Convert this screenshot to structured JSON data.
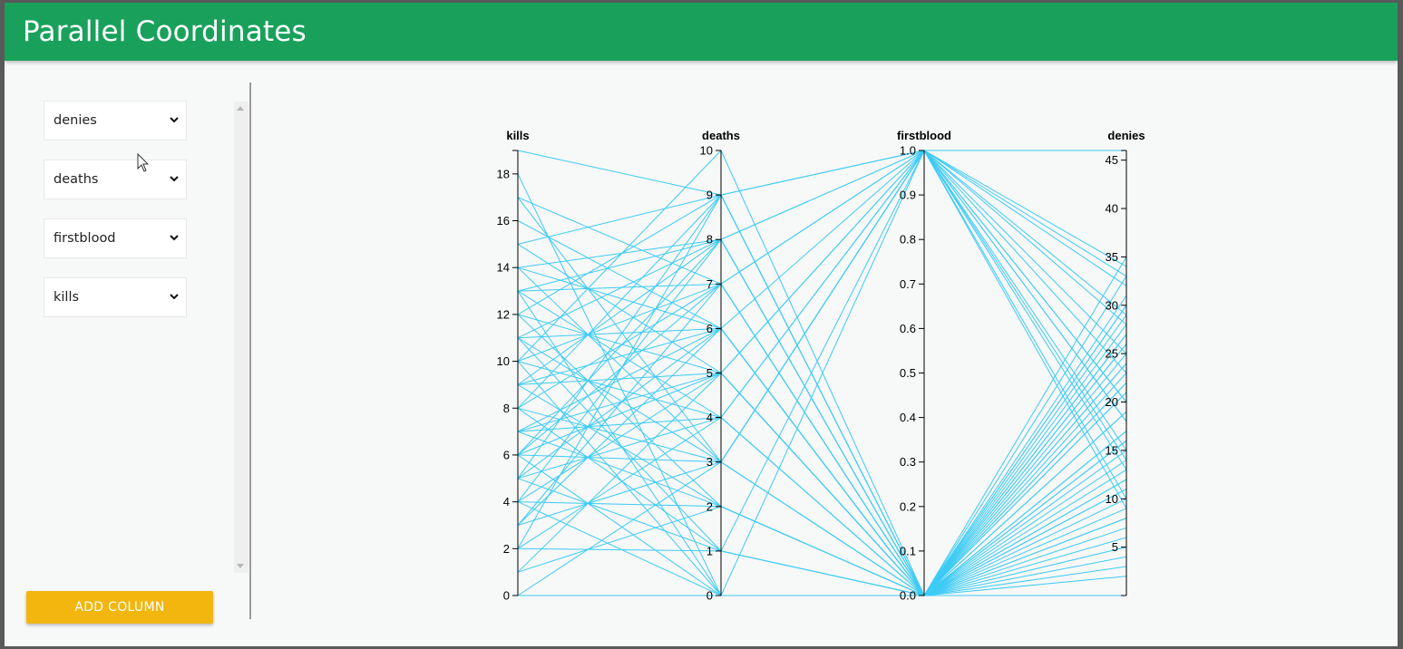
{
  "app": {
    "title": "Parallel Coordinates"
  },
  "sidebar": {
    "selects": [
      {
        "value": "denies"
      },
      {
        "value": "deaths"
      },
      {
        "value": "firstblood"
      },
      {
        "value": "kills"
      }
    ],
    "add_button_label": "ADD COLUMN"
  },
  "colors": {
    "header": "#19a15b",
    "button": "#f2b60f",
    "line": "#3ccbf4"
  },
  "chart_data": {
    "type": "parallel_coordinates",
    "axes": [
      {
        "name": "kills",
        "range": [
          0,
          19
        ],
        "ticks": [
          0,
          2,
          4,
          6,
          8,
          10,
          12,
          14,
          16,
          18
        ]
      },
      {
        "name": "deaths",
        "range": [
          0,
          10
        ],
        "ticks": [
          0,
          1,
          2,
          3,
          4,
          5,
          6,
          7,
          8,
          9,
          10
        ]
      },
      {
        "name": "firstblood",
        "range": [
          0,
          1
        ],
        "ticks": [
          "0.0",
          "0.1",
          "0.2",
          "0.3",
          "0.4",
          "0.5",
          "0.6",
          "0.7",
          "0.8",
          "0.9",
          "1.0"
        ]
      },
      {
        "name": "denies",
        "range": [
          0,
          46
        ],
        "ticks": [
          5,
          10,
          15,
          20,
          25,
          30,
          35,
          40,
          45
        ]
      }
    ],
    "records": [
      [
        19,
        9,
        1,
        46
      ],
      [
        18,
        0,
        0,
        35
      ],
      [
        17,
        7,
        0,
        30
      ],
      [
        17,
        3,
        1,
        25
      ],
      [
        16,
        6,
        0,
        33
      ],
      [
        15,
        9,
        1,
        28
      ],
      [
        15,
        5,
        0,
        22
      ],
      [
        14,
        8,
        0,
        31
      ],
      [
        14,
        3,
        1,
        18
      ],
      [
        14,
        6,
        0,
        12
      ],
      [
        13,
        7,
        1,
        34
      ],
      [
        13,
        0,
        0,
        29
      ],
      [
        13,
        4,
        0,
        24
      ],
      [
        12,
        5,
        1,
        20
      ],
      [
        12,
        2,
        0,
        27
      ],
      [
        12,
        9,
        0,
        16
      ],
      [
        11,
        6,
        1,
        14
      ],
      [
        11,
        1,
        0,
        23
      ],
      [
        11,
        8,
        0,
        19
      ],
      [
        11,
        3,
        1,
        33
      ],
      [
        10,
        7,
        0,
        11
      ],
      [
        10,
        4,
        0,
        26
      ],
      [
        10,
        0,
        1,
        9
      ],
      [
        9,
        5,
        0,
        21
      ],
      [
        9,
        8,
        1,
        15
      ],
      [
        9,
        2,
        0,
        30
      ],
      [
        9,
        6,
        0,
        7
      ],
      [
        8,
        3,
        1,
        13
      ],
      [
        8,
        7,
        0,
        25
      ],
      [
        8,
        1,
        0,
        17
      ],
      [
        8,
        9,
        0,
        22
      ],
      [
        7,
        4,
        1,
        10
      ],
      [
        7,
        6,
        0,
        28
      ],
      [
        7,
        2,
        0,
        8
      ],
      [
        7,
        5,
        0,
        19
      ],
      [
        6,
        8,
        1,
        32
      ],
      [
        6,
        3,
        0,
        14
      ],
      [
        6,
        0,
        0,
        24
      ],
      [
        6,
        7,
        0,
        6
      ],
      [
        5,
        4,
        1,
        18
      ],
      [
        5,
        9,
        0,
        26
      ],
      [
        5,
        1,
        0,
        12
      ],
      [
        5,
        6,
        0,
        21
      ],
      [
        4,
        5,
        1,
        29
      ],
      [
        4,
        2,
        0,
        9
      ],
      [
        4,
        8,
        0,
        16
      ],
      [
        4,
        0,
        0,
        4
      ],
      [
        3,
        7,
        1,
        23
      ],
      [
        3,
        3,
        0,
        11
      ],
      [
        3,
        6,
        0,
        27
      ],
      [
        2,
        4,
        0,
        15
      ],
      [
        2,
        1,
        1,
        20
      ],
      [
        2,
        9,
        0,
        5
      ],
      [
        1,
        5,
        0,
        13
      ],
      [
        1,
        2,
        0,
        3
      ],
      [
        0,
        0,
        0,
        8
      ],
      [
        0,
        3,
        0,
        2
      ],
      [
        10,
        10,
        0,
        0
      ],
      [
        13,
        8,
        0,
        17
      ],
      [
        6,
        5,
        0,
        10
      ]
    ]
  }
}
